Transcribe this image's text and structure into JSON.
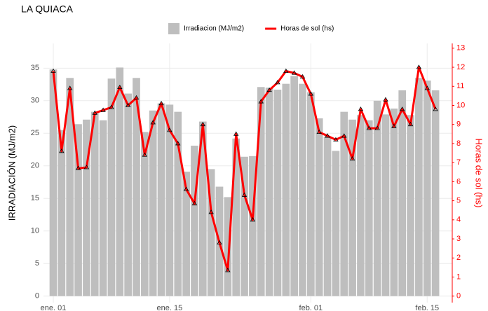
{
  "chart_data": {
    "type": "bar_line",
    "title": "LA QUIACA",
    "y_label": "IRRADIACIÓN (MJ/m2)",
    "y2_label": "Horas de sol (hs)",
    "categories": [
      "ene. 01",
      null,
      null,
      null,
      null,
      null,
      null,
      null,
      null,
      null,
      null,
      null,
      null,
      null,
      "ene. 15",
      null,
      null,
      null,
      null,
      null,
      null,
      null,
      null,
      null,
      null,
      null,
      null,
      null,
      null,
      null,
      null,
      "feb. 01",
      null,
      null,
      null,
      null,
      null,
      null,
      null,
      null,
      null,
      null,
      null,
      null,
      null,
      "feb. 15",
      null
    ],
    "series": [
      {
        "name": "Irradiacion (MJ/m2)",
        "color": "#bebebe",
        "kind": "bar",
        "values": [
          34.8,
          25.5,
          33.5,
          26.4,
          27.1,
          28.3,
          27.0,
          33.4,
          35.1,
          31.1,
          33.5,
          25.2,
          28.5,
          29.6,
          29.4,
          28.3,
          19.1,
          23.1,
          26.8,
          19.5,
          16.8,
          15.2,
          24.2,
          21.4,
          21.5,
          32.1,
          32.0,
          31.7,
          32.6,
          33.8,
          32.6,
          31.3,
          27.3,
          24.5,
          22.3,
          28.3,
          27.1,
          27.8,
          27.0,
          30.0,
          27.9,
          28.8,
          31.6,
          27.8,
          33.5,
          33.1,
          31.6
        ]
      },
      {
        "name": "Horas de sol (hs)",
        "color": "#ff0000",
        "kind": "line",
        "axis": "y2",
        "values": [
          11.8,
          7.6,
          10.9,
          6.7,
          6.75,
          9.6,
          9.75,
          9.9,
          10.95,
          10.0,
          10.4,
          7.4,
          9.1,
          10.1,
          8.7,
          8.0,
          5.6,
          4.85,
          9.0,
          4.4,
          2.8,
          1.35,
          8.5,
          5.3,
          4.0,
          10.2,
          10.8,
          11.2,
          11.8,
          11.7,
          11.5,
          10.6,
          8.6,
          8.4,
          8.2,
          8.4,
          7.2,
          9.8,
          8.8,
          8.8,
          10.3,
          8.9,
          9.8,
          9.0,
          12.0,
          10.9,
          9.8
        ]
      }
    ],
    "ylim": [
      -1,
      38.8
    ],
    "yticks": [
      0,
      5,
      10,
      15,
      20,
      25,
      30,
      35
    ],
    "y2lim": [
      -0.34,
      13.25
    ],
    "y2ticks": [
      0,
      1,
      2,
      3,
      4,
      5,
      6,
      7,
      8,
      9,
      10,
      11,
      12,
      13
    ],
    "grid": true
  }
}
